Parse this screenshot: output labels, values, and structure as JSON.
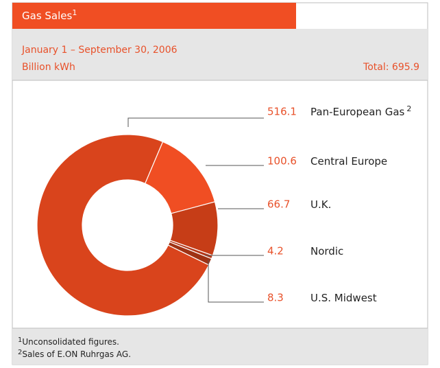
{
  "chart_data": {
    "type": "donut",
    "title": "Gas Sales",
    "title_note": "1",
    "subtitle": "January 1 – September 30, 2006",
    "unit": "Billion kWh",
    "total_label": "Total: 695.9",
    "categories": [
      "Pan-European Gas",
      "Central Europe",
      "U.K.",
      "Nordic",
      "U.S. Midwest"
    ],
    "category_notes": [
      "2",
      null,
      null,
      null,
      null
    ],
    "values": [
      516.1,
      100.6,
      66.7,
      4.2,
      8.3
    ],
    "colors": [
      "#d9441c",
      "#f04e23",
      "#c63d17",
      "#b5381a",
      "#9e3214"
    ],
    "notes": [
      {
        "mark": "1",
        "text": "Unconsolidated figures."
      },
      {
        "mark": "2",
        "text": "Sales of E.ON Ruhrgas AG."
      }
    ]
  }
}
